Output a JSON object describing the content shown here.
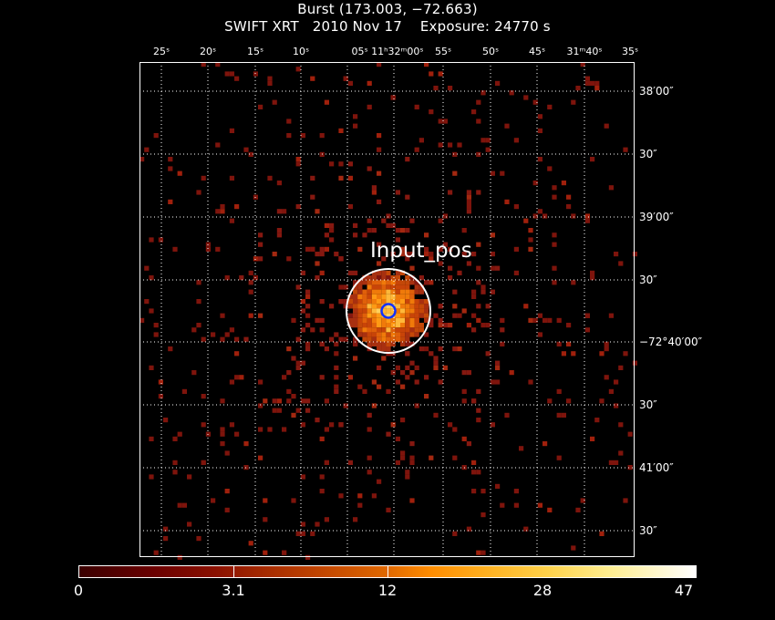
{
  "header": {
    "title": "Burst (173.003, −72.663)",
    "subtitle": "SWIFT XRT   2010 Nov 17    Exposure: 24770 s"
  },
  "axes": {
    "ra_ticks": [
      {
        "text": "25ˢ"
      },
      {
        "text": "20ˢ"
      },
      {
        "text": "15ˢ"
      },
      {
        "text": "10ˢ"
      },
      {
        "text": "05ˢ 11ʰ32ᵐ00ˢ"
      },
      {
        "text": "55ˢ"
      },
      {
        "text": "50ˢ"
      },
      {
        "text": "45ˢ"
      },
      {
        "text": "31ᵐ40ˢ"
      },
      {
        "text": "35ˢ"
      }
    ],
    "dec_ticks": [
      {
        "text": "38′00″"
      },
      {
        "text": "30″"
      },
      {
        "text": "39′00″"
      },
      {
        "text": "30″"
      },
      {
        "text": "−72°40′00″"
      },
      {
        "text": "30″"
      },
      {
        "text": "41′00″"
      },
      {
        "text": "30″"
      }
    ]
  },
  "source": {
    "label": "Input_pos",
    "circle_color": "#ffffff",
    "marker_color": "#1030ff"
  },
  "colorbar": {
    "labels": [
      "0",
      "3.1",
      "12",
      "28",
      "47"
    ],
    "low_color": "#3a0000",
    "high_color": "#ffffff"
  },
  "colors": {
    "background": "#000000",
    "frame": "#ffffff",
    "grid": "#ffffff",
    "photon_dim": "#8b1a10",
    "photon_mid": "#d04a08",
    "photon_bright": "#ff9a10"
  }
}
